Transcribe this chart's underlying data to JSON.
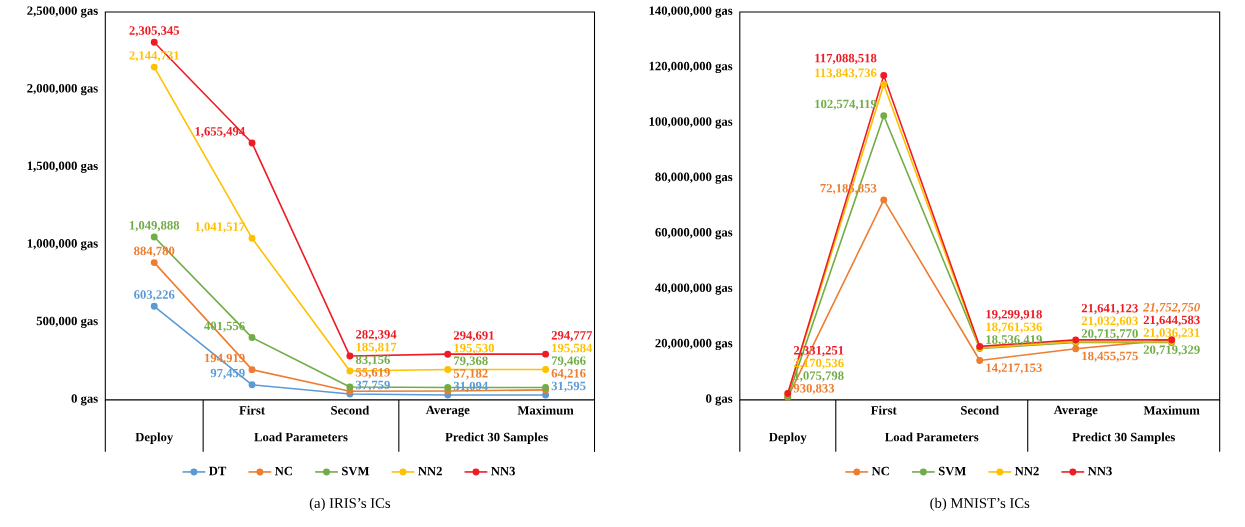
{
  "chart_data": [
    {
      "type": "line",
      "title": "(a)  IRIS’s ICs",
      "categories": [
        null,
        "First",
        "Second",
        "Average",
        "Maximum"
      ],
      "annotations": [
        "Deploy",
        "Load Parameters",
        "Predict 30 Samples"
      ],
      "ylim": [
        0,
        2500000
      ],
      "yticks": [
        {
          "value": 0,
          "label": "0 gas"
        },
        {
          "value": 500000,
          "label": "500,000 gas"
        },
        {
          "value": 1000000,
          "label": "1,000,000 gas"
        },
        {
          "value": 1500000,
          "label": "1,500,000 gas"
        },
        {
          "value": 2000000,
          "label": "2,000,000 gas"
        },
        {
          "value": 2500000,
          "label": "2,500,000 gas"
        }
      ],
      "legend": "bottom",
      "marker": "circle",
      "line_style": "solid",
      "series": [
        {
          "name": "DT",
          "color": "#5b9bd5",
          "values": [
            603226,
            97459,
            37759,
            31094,
            31595
          ],
          "value_labels": [
            "603,226",
            "97,459",
            "37,759",
            "31,094",
            "31,595"
          ]
        },
        {
          "name": "NC",
          "color": "#ed7d31",
          "values": [
            884780,
            194919,
            55619,
            57182,
            64216
          ],
          "value_labels": [
            "884,780",
            "194,919",
            "55,619",
            "57,182",
            "64,216"
          ]
        },
        {
          "name": "SVM",
          "color": "#70ad47",
          "values": [
            1049888,
            401556,
            83156,
            79368,
            79466
          ],
          "value_labels": [
            "1,049,888",
            "401,556",
            "83,156",
            "79,368",
            "79,466"
          ]
        },
        {
          "name": "NN2",
          "color": "#ffc000",
          "values": [
            2144731,
            1041517,
            185817,
            195530,
            195584
          ],
          "value_labels": [
            "2,144,731",
            "1,041,517",
            "185,817",
            "195,530",
            "195,584"
          ]
        },
        {
          "name": "NN3",
          "color": "#ee1c25",
          "values": [
            2305345,
            1655494,
            282394,
            294691,
            294777
          ],
          "value_labels": [
            "2,305,345",
            "1,655,494",
            "282,394",
            "294,691",
            "294,777"
          ]
        }
      ]
    },
    {
      "type": "line",
      "title": "(b)  MNIST’s ICs",
      "categories": [
        null,
        "First",
        "Second",
        "Average",
        "Maximum"
      ],
      "annotations": [
        "Deploy",
        "Load Parameters",
        "Predict 30 Samples"
      ],
      "ylim": [
        0,
        140000000
      ],
      "yticks": [
        {
          "value": 0,
          "label": "0 gas"
        },
        {
          "value": 20000000,
          "label": "20,000,000 gas"
        },
        {
          "value": 40000000,
          "label": "40,000,000 gas"
        },
        {
          "value": 60000000,
          "label": "60,000,000 gas"
        },
        {
          "value": 80000000,
          "label": "80,000,000 gas"
        },
        {
          "value": 100000000,
          "label": "100,000,000 gas"
        },
        {
          "value": 120000000,
          "label": "120,000,000 gas"
        },
        {
          "value": 140000000,
          "label": "140,000,000 gas"
        }
      ],
      "legend": "bottom",
      "marker": "circle",
      "line_style": "solid",
      "series": [
        {
          "name": "NC",
          "color": "#ed7d31",
          "values": [
            930833,
            72185853,
            14217153,
            18455575,
            21752750
          ],
          "value_labels": [
            "930,833",
            "72,185,853",
            "14,217,153",
            "18,455,575",
            "*21,752,750*"
          ]
        },
        {
          "name": "SVM",
          "color": "#70ad47",
          "values": [
            1075798,
            102574119,
            18536419,
            20715770,
            20719329
          ],
          "value_labels": [
            "1,075,798",
            "102,574,119",
            "18,536,419",
            "20,715,770",
            "20,719,329"
          ]
        },
        {
          "name": "NN2",
          "color": "#ffc000",
          "values": [
            2170536,
            113843736,
            18761536,
            21032603,
            21036231
          ],
          "value_labels": [
            "2,170,536",
            "113,843,736",
            "18,761,536",
            "21,032,603",
            "21,036,231"
          ]
        },
        {
          "name": "NN3",
          "color": "#ee1c25",
          "values": [
            2331251,
            117088518,
            19299918,
            21641123,
            21644583
          ],
          "value_labels": [
            "2,331,251",
            "117,088,518",
            "19,299,918",
            "21,641,123",
            "21,644,583"
          ]
        }
      ]
    }
  ]
}
